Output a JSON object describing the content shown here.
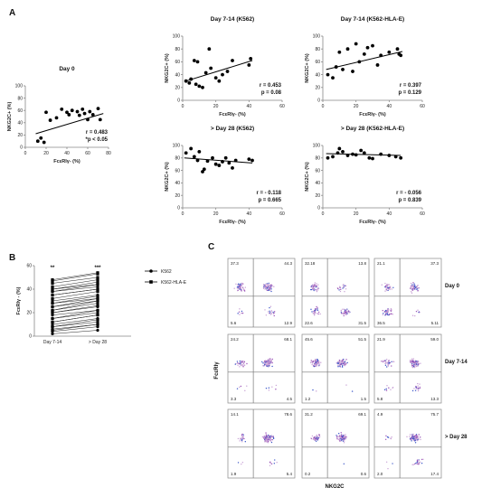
{
  "panel_labels": {
    "a": "A",
    "b": "B",
    "c": "C"
  },
  "chart_data": [
    {
      "type": "scatter",
      "title": "Day 0",
      "xlabel": "FcεRIγ- (%)",
      "ylabel": "NKG2C+ (%)",
      "xlim": [
        0,
        80
      ],
      "ylim": [
        0,
        100
      ],
      "xticks": [
        0,
        20,
        40,
        60,
        80
      ],
      "yticks": [
        0,
        20,
        40,
        60,
        80,
        100
      ],
      "stats": [
        "r = 0.483",
        "*p < 0.05"
      ],
      "fit": [
        [
          10,
          22
        ],
        [
          75,
          55
        ]
      ],
      "points": [
        [
          12,
          10
        ],
        [
          15,
          15
        ],
        [
          18,
          8
        ],
        [
          20,
          57
        ],
        [
          24,
          44
        ],
        [
          30,
          48
        ],
        [
          35,
          62
        ],
        [
          40,
          57
        ],
        [
          42,
          53
        ],
        [
          45,
          60
        ],
        [
          50,
          58
        ],
        [
          52,
          52
        ],
        [
          55,
          62
        ],
        [
          57,
          55
        ],
        [
          60,
          45
        ],
        [
          62,
          58
        ],
        [
          65,
          53
        ],
        [
          70,
          63
        ],
        [
          72,
          45
        ]
      ]
    },
    {
      "type": "scatter",
      "title": "Day 7-14 (K562)",
      "xlabel": "FcεRIγ- (%)",
      "ylabel": "NKG2C+ (%)",
      "xlim": [
        0,
        60
      ],
      "ylim": [
        0,
        100
      ],
      "xticks": [
        0,
        20,
        40,
        60
      ],
      "yticks": [
        0,
        20,
        40,
        60,
        80,
        100
      ],
      "stats": [
        "r = 0.453",
        "p = 0.08"
      ],
      "fit": [
        [
          2,
          30
        ],
        [
          42,
          62
        ]
      ],
      "points": [
        [
          2,
          30
        ],
        [
          4,
          27
        ],
        [
          5,
          33
        ],
        [
          7,
          62
        ],
        [
          8,
          25
        ],
        [
          9,
          60
        ],
        [
          10,
          22
        ],
        [
          12,
          20
        ],
        [
          14,
          43
        ],
        [
          16,
          80
        ],
        [
          17,
          50
        ],
        [
          20,
          35
        ],
        [
          22,
          30
        ],
        [
          24,
          40
        ],
        [
          27,
          45
        ],
        [
          30,
          62
        ],
        [
          40,
          55
        ],
        [
          41,
          65
        ]
      ]
    },
    {
      "type": "scatter",
      "title": "Day 7-14 (K562-HLA-E)",
      "xlabel": "FcεRIγ- (%)",
      "ylabel": "NKG2C+ (%)",
      "xlim": [
        0,
        60
      ],
      "ylim": [
        0,
        100
      ],
      "xticks": [
        0,
        20,
        40,
        60
      ],
      "yticks": [
        0,
        20,
        40,
        60,
        80,
        100
      ],
      "stats": [
        "r = 0.397",
        "p = 0.129"
      ],
      "fit": [
        [
          2,
          48
        ],
        [
          48,
          76
        ]
      ],
      "points": [
        [
          3,
          40
        ],
        [
          6,
          35
        ],
        [
          8,
          52
        ],
        [
          10,
          75
        ],
        [
          12,
          48
        ],
        [
          15,
          80
        ],
        [
          18,
          45
        ],
        [
          20,
          88
        ],
        [
          22,
          60
        ],
        [
          25,
          72
        ],
        [
          27,
          82
        ],
        [
          30,
          85
        ],
        [
          33,
          55
        ],
        [
          35,
          70
        ],
        [
          40,
          75
        ],
        [
          45,
          80
        ],
        [
          46,
          72
        ],
        [
          47,
          70
        ]
      ]
    },
    {
      "type": "scatter",
      "title": "> Day 28 (K562)",
      "xlabel": "FcεRIγ- (%)",
      "ylabel": "NKG2C+ (%)",
      "xlim": [
        0,
        60
      ],
      "ylim": [
        0,
        100
      ],
      "xticks": [
        0,
        20,
        40,
        60
      ],
      "yticks": [
        0,
        20,
        40,
        60,
        80,
        100
      ],
      "stats": [
        "r = - 0.118",
        "p = 0.665"
      ],
      "fit": [
        [
          1,
          80
        ],
        [
          42,
          72
        ]
      ],
      "points": [
        [
          2,
          88
        ],
        [
          5,
          95
        ],
        [
          7,
          82
        ],
        [
          9,
          76
        ],
        [
          10,
          90
        ],
        [
          12,
          58
        ],
        [
          13,
          62
        ],
        [
          15,
          75
        ],
        [
          18,
          80
        ],
        [
          20,
          70
        ],
        [
          22,
          68
        ],
        [
          24,
          74
        ],
        [
          26,
          80
        ],
        [
          28,
          72
        ],
        [
          30,
          64
        ],
        [
          32,
          76
        ],
        [
          40,
          78
        ],
        [
          42,
          76
        ]
      ]
    },
    {
      "type": "scatter",
      "title": "> Day 28 (K562-HLA-E)",
      "xlabel": "FcεRIγ- (%)",
      "ylabel": "NKG2C+ (%)",
      "xlim": [
        0,
        60
      ],
      "ylim": [
        0,
        100
      ],
      "xticks": [
        0,
        20,
        40,
        60
      ],
      "yticks": [
        0,
        20,
        40,
        60,
        80,
        100
      ],
      "stats": [
        "r = - 0.056",
        "p = 0.839"
      ],
      "fit": [
        [
          2,
          87
        ],
        [
          47,
          84
        ]
      ],
      "points": [
        [
          3,
          80
        ],
        [
          6,
          82
        ],
        [
          9,
          88
        ],
        [
          10,
          95
        ],
        [
          12,
          90
        ],
        [
          15,
          84
        ],
        [
          18,
          86
        ],
        [
          20,
          85
        ],
        [
          23,
          92
        ],
        [
          25,
          88
        ],
        [
          28,
          80
        ],
        [
          30,
          79
        ],
        [
          35,
          86
        ],
        [
          40,
          84
        ],
        [
          44,
          82
        ],
        [
          47,
          80
        ]
      ]
    },
    {
      "type": "line",
      "title": "",
      "ylabel": "FcεRIγ - (%)",
      "categories": [
        "Day 7-14",
        "> Day 28"
      ],
      "ylim": [
        0,
        60
      ],
      "yticks": [
        0,
        20,
        40,
        60
      ],
      "significance": [
        "**",
        "***"
      ],
      "series": [
        {
          "name": "K562",
          "marker": "circle",
          "pairs": [
            [
              2,
              5
            ],
            [
              4,
              8
            ],
            [
              6,
              10
            ],
            [
              8,
              12
            ],
            [
              10,
              15
            ],
            [
              12,
              18
            ],
            [
              15,
              20
            ],
            [
              18,
              22
            ],
            [
              20,
              25
            ],
            [
              22,
              28
            ],
            [
              25,
              30
            ],
            [
              28,
              32
            ],
            [
              30,
              35
            ],
            [
              35,
              40
            ],
            [
              38,
              42
            ],
            [
              40,
              44
            ]
          ]
        },
        {
          "name": "K562-HLA-E",
          "marker": "square",
          "pairs": [
            [
              5,
              10
            ],
            [
              8,
              14
            ],
            [
              12,
              18
            ],
            [
              15,
              22
            ],
            [
              20,
              26
            ],
            [
              22,
              30
            ],
            [
              25,
              32
            ],
            [
              28,
              34
            ],
            [
              32,
              38
            ],
            [
              35,
              40
            ],
            [
              38,
              44
            ],
            [
              40,
              46
            ],
            [
              42,
              48
            ],
            [
              45,
              50
            ],
            [
              47,
              53
            ],
            [
              48,
              54
            ]
          ]
        }
      ]
    },
    {
      "type": "flow-grid",
      "xlabel": "NKG2C",
      "ylabel": "FcεRIγ",
      "rows": [
        "Day 0",
        "Day 7-14",
        "> Day 28"
      ],
      "plots": [
        [
          {
            "tl": "37.3",
            "tr": "44.3",
            "bl": "5.6",
            "br": "12.9"
          },
          {
            "tl": "32.18",
            "tr": "13.8",
            "bl": "22.6",
            "br": "31.5"
          },
          {
            "tl": "21.1",
            "tr": "37.3",
            "bl": "36.5",
            "br": "5.11"
          }
        ],
        [
          {
            "tl": "24.2",
            "tr": "68.1",
            "bl": "3.3",
            "br": "4.5"
          },
          {
            "tl": "45.6",
            "tr": "51.5",
            "bl": "1.2",
            "br": "1.5"
          },
          {
            "tl": "21.9",
            "tr": "59.0",
            "bl": "5.8",
            "br": "13.3"
          }
        ],
        [
          {
            "tl": "14.1",
            "tr": "78.6",
            "bl": "1.9",
            "br": "5.4"
          },
          {
            "tl": "31.2",
            "tr": "69.1",
            "bl": "0.2",
            "br": "0.6"
          },
          {
            "tl": "4.9",
            "tr": "75.7",
            "bl": "2.0",
            "br": "17.4"
          }
        ]
      ]
    }
  ]
}
